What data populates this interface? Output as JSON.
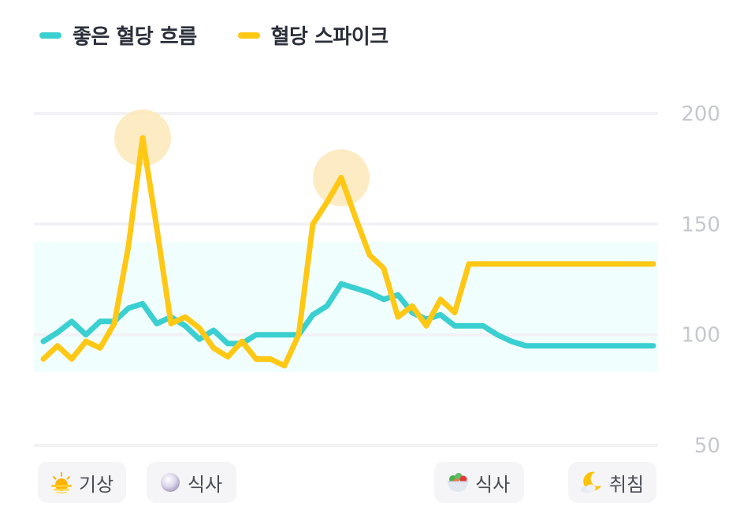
{
  "legend": {
    "good_label": "좋은 혈당 흐름",
    "spike_label": "혈당 스파이크"
  },
  "colors": {
    "good": "#3ACFD0",
    "spike": "#FFC814",
    "target_band": "#F1FEFE",
    "highlight": "#FDE8B8",
    "grid": "#F1F1F6",
    "tick": "#C6C8CE"
  },
  "events": [
    {
      "icon": "sunrise-icon",
      "label": "기상"
    },
    {
      "icon": "rice-ball-icon",
      "label": "식사"
    },
    {
      "icon": "salad-bowl-icon",
      "label": "식사"
    },
    {
      "icon": "moon-cloud-icon",
      "label": "취침"
    }
  ],
  "chart_data": {
    "type": "line",
    "title": "",
    "xlabel": "",
    "ylabel": "",
    "ylim": [
      50,
      200
    ],
    "yticks": [
      50,
      100,
      150,
      200
    ],
    "grid": true,
    "legend_position": "top-left",
    "target_range": [
      83,
      142
    ],
    "x": [
      0,
      0.5,
      1,
      1.5,
      2,
      2.5,
      3,
      3.5,
      4,
      4.5,
      5,
      5.5,
      6,
      6.5,
      7,
      7.5,
      8,
      8.5,
      9,
      9.5,
      10,
      10.5,
      11,
      11.5,
      12,
      12.5,
      13,
      13.5,
      14,
      14.5,
      15,
      15.5,
      16,
      16.5,
      17,
      17.5,
      18,
      18.5,
      19,
      19.5,
      20,
      20.5,
      21,
      21.5
    ],
    "series": [
      {
        "name": "좋은 혈당 흐름",
        "values": [
          97,
          101,
          106,
          100,
          106,
          106,
          112,
          114,
          105,
          108,
          104,
          98,
          102,
          96,
          96,
          100,
          100,
          100,
          100,
          109,
          113,
          123,
          121,
          119,
          116,
          118,
          110,
          107,
          109,
          104,
          104,
          104,
          100,
          97,
          95,
          95,
          95,
          95,
          95,
          95,
          95,
          95,
          95,
          95
        ]
      },
      {
        "name": "혈당 스파이크",
        "values": [
          89,
          95,
          89,
          97,
          94,
          105,
          140,
          189,
          148,
          105,
          108,
          103,
          94,
          90,
          97,
          89,
          89,
          86,
          100,
          150,
          160,
          171,
          153,
          136,
          130,
          108,
          113,
          104,
          116,
          110,
          132,
          132,
          132,
          132,
          132,
          132,
          132,
          132,
          132,
          132,
          132,
          132,
          132,
          132
        ]
      }
    ],
    "highlights": [
      {
        "x": 3.5,
        "y": 189
      },
      {
        "x": 10.5,
        "y": 171
      }
    ]
  }
}
